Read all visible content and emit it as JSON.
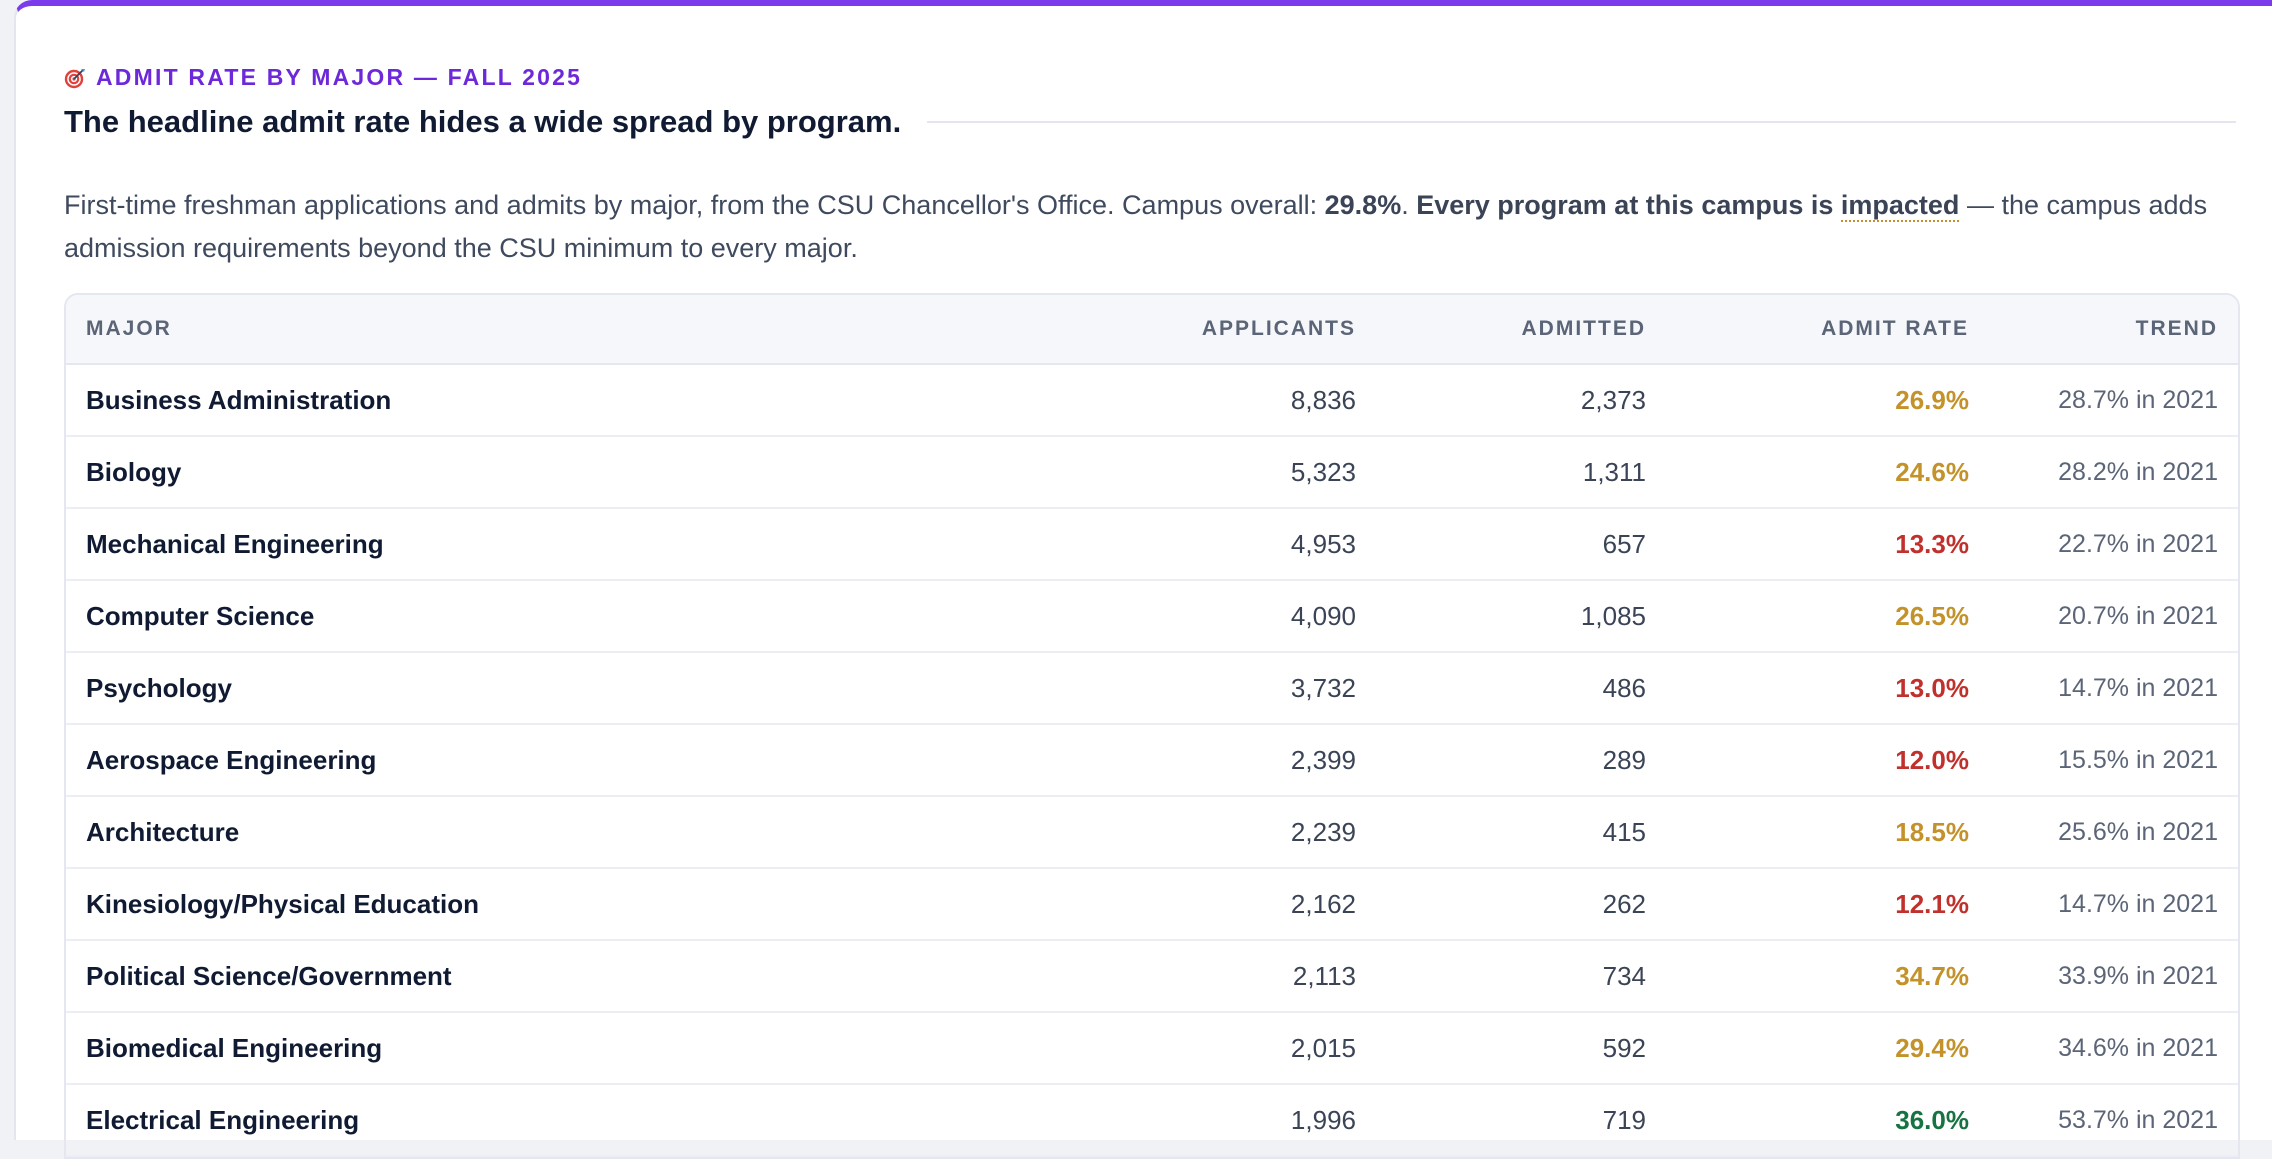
{
  "section": {
    "eyebrow_icon": "target-icon",
    "eyebrow": "ADMIT RATE BY MAJOR — FALL 2025",
    "headline": "The headline admit rate hides a wide spread by program.",
    "desc_pre": "First-time freshman applications and admits by major, from the CSU Chancellor's Office. Campus overall: ",
    "campus_overall": "29.8%",
    "desc_mid": ". ",
    "desc_bold": "Every program at this campus is ",
    "desc_term": "impacted",
    "desc_post": " — the campus adds admission requirements beyond the CSU minimum to every major."
  },
  "table": {
    "columns": {
      "major": "Major",
      "applicants": "Applicants",
      "admitted": "Admitted",
      "rate": "Admit Rate",
      "trend": "Trend"
    },
    "rows": [
      {
        "major": "Business Administration",
        "applicants": "8,836",
        "admitted": "2,373",
        "rate": "26.9%",
        "rate_level": "mid",
        "trend": "28.7% in 2021"
      },
      {
        "major": "Biology",
        "applicants": "5,323",
        "admitted": "1,311",
        "rate": "24.6%",
        "rate_level": "mid",
        "trend": "28.2% in 2021"
      },
      {
        "major": "Mechanical Engineering",
        "applicants": "4,953",
        "admitted": "657",
        "rate": "13.3%",
        "rate_level": "low",
        "trend": "22.7% in 2021"
      },
      {
        "major": "Computer Science",
        "applicants": "4,090",
        "admitted": "1,085",
        "rate": "26.5%",
        "rate_level": "mid",
        "trend": "20.7% in 2021"
      },
      {
        "major": "Psychology",
        "applicants": "3,732",
        "admitted": "486",
        "rate": "13.0%",
        "rate_level": "low",
        "trend": "14.7% in 2021"
      },
      {
        "major": "Aerospace Engineering",
        "applicants": "2,399",
        "admitted": "289",
        "rate": "12.0%",
        "rate_level": "low",
        "trend": "15.5% in 2021"
      },
      {
        "major": "Architecture",
        "applicants": "2,239",
        "admitted": "415",
        "rate": "18.5%",
        "rate_level": "mid",
        "trend": "25.6% in 2021"
      },
      {
        "major": "Kinesiology/Physical Education",
        "applicants": "2,162",
        "admitted": "262",
        "rate": "12.1%",
        "rate_level": "low",
        "trend": "14.7% in 2021"
      },
      {
        "major": "Political Science/Government",
        "applicants": "2,113",
        "admitted": "734",
        "rate": "34.7%",
        "rate_level": "mid",
        "trend": "33.9% in 2021"
      },
      {
        "major": "Biomedical Engineering",
        "applicants": "2,015",
        "admitted": "592",
        "rate": "29.4%",
        "rate_level": "mid",
        "trend": "34.6% in 2021"
      },
      {
        "major": "Electrical Engineering",
        "applicants": "1,996",
        "admitted": "719",
        "rate": "36.0%",
        "rate_level": "high",
        "trend": "53.7% in 2021"
      }
    ]
  },
  "colors": {
    "accent": "#7c3aed",
    "rate_mid": "#c3922a",
    "rate_low": "#c0312d",
    "rate_high": "#177341"
  }
}
